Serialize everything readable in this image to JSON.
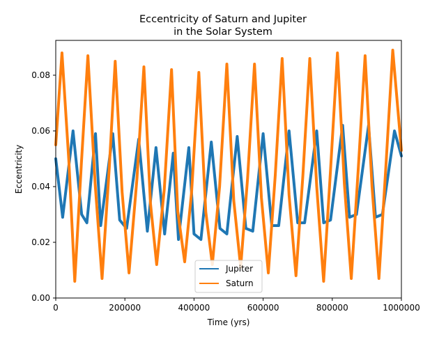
{
  "chart_data": {
    "type": "line",
    "title_line1": "Eccentricity of Saturn and Jupiter",
    "title_line2": "in the Solar System",
    "xlabel": "Time (yrs)",
    "ylabel": "Eccentricity",
    "xlim": [
      0,
      1000000
    ],
    "ylim": [
      0.0,
      0.0925
    ],
    "x_ticks": [
      {
        "value": 0,
        "label": "0"
      },
      {
        "value": 200000,
        "label": "200000"
      },
      {
        "value": 400000,
        "label": "400000"
      },
      {
        "value": 600000,
        "label": "600000"
      },
      {
        "value": 800000,
        "label": "800000"
      },
      {
        "value": 1000000,
        "label": "1000000"
      }
    ],
    "y_ticks": [
      {
        "value": 0.0,
        "label": "0.00"
      },
      {
        "value": 0.02,
        "label": "0.02"
      },
      {
        "value": 0.04,
        "label": "0.04"
      },
      {
        "value": 0.06,
        "label": "0.06"
      },
      {
        "value": 0.08,
        "label": "0.08"
      }
    ],
    "grid": false,
    "legend_position": "bottom-center",
    "series": [
      {
        "name": "Jupiter",
        "color": "#1f77b4",
        "x": [
          0,
          20000,
          50000,
          75000,
          90000,
          115000,
          130000,
          165000,
          185000,
          205000,
          240000,
          265000,
          290000,
          315000,
          340000,
          355000,
          385000,
          400000,
          420000,
          450000,
          475000,
          495000,
          525000,
          550000,
          570000,
          600000,
          625000,
          645000,
          675000,
          700000,
          720000,
          755000,
          775000,
          795000,
          830000,
          850000,
          870000,
          905000,
          925000,
          945000,
          980000,
          1000000
        ],
        "values": [
          0.05,
          0.029,
          0.06,
          0.03,
          0.027,
          0.059,
          0.026,
          0.059,
          0.028,
          0.025,
          0.057,
          0.024,
          0.054,
          0.023,
          0.052,
          0.021,
          0.054,
          0.023,
          0.021,
          0.056,
          0.025,
          0.023,
          0.058,
          0.025,
          0.024,
          0.059,
          0.026,
          0.026,
          0.06,
          0.027,
          0.027,
          0.06,
          0.027,
          0.028,
          0.062,
          0.029,
          0.03,
          0.062,
          0.029,
          0.03,
          0.06,
          0.051
        ]
      },
      {
        "name": "Saturn",
        "color": "#ff7f0e",
        "x": [
          0,
          18000,
          38000,
          55000,
          74000,
          93000,
          114000,
          134000,
          155000,
          172000,
          192000,
          212000,
          235000,
          255000,
          274000,
          292000,
          314000,
          335000,
          353000,
          373000,
          393000,
          414000,
          434000,
          453000,
          474000,
          495000,
          515000,
          535000,
          555000,
          575000,
          595000,
          615000,
          635000,
          655000,
          675000,
          695000,
          715000,
          735000,
          755000,
          775000,
          795000,
          815000,
          835000,
          855000,
          875000,
          895000,
          915000,
          935000,
          955000,
          975000,
          1000000
        ],
        "values": [
          0.055,
          0.088,
          0.049,
          0.006,
          0.048,
          0.087,
          0.041,
          0.007,
          0.047,
          0.085,
          0.038,
          0.009,
          0.043,
          0.083,
          0.034,
          0.012,
          0.039,
          0.082,
          0.031,
          0.013,
          0.038,
          0.081,
          0.031,
          0.012,
          0.04,
          0.084,
          0.035,
          0.011,
          0.043,
          0.084,
          0.036,
          0.009,
          0.044,
          0.086,
          0.037,
          0.008,
          0.044,
          0.086,
          0.04,
          0.006,
          0.046,
          0.088,
          0.041,
          0.007,
          0.046,
          0.087,
          0.04,
          0.007,
          0.047,
          0.089,
          0.053
        ]
      }
    ]
  }
}
